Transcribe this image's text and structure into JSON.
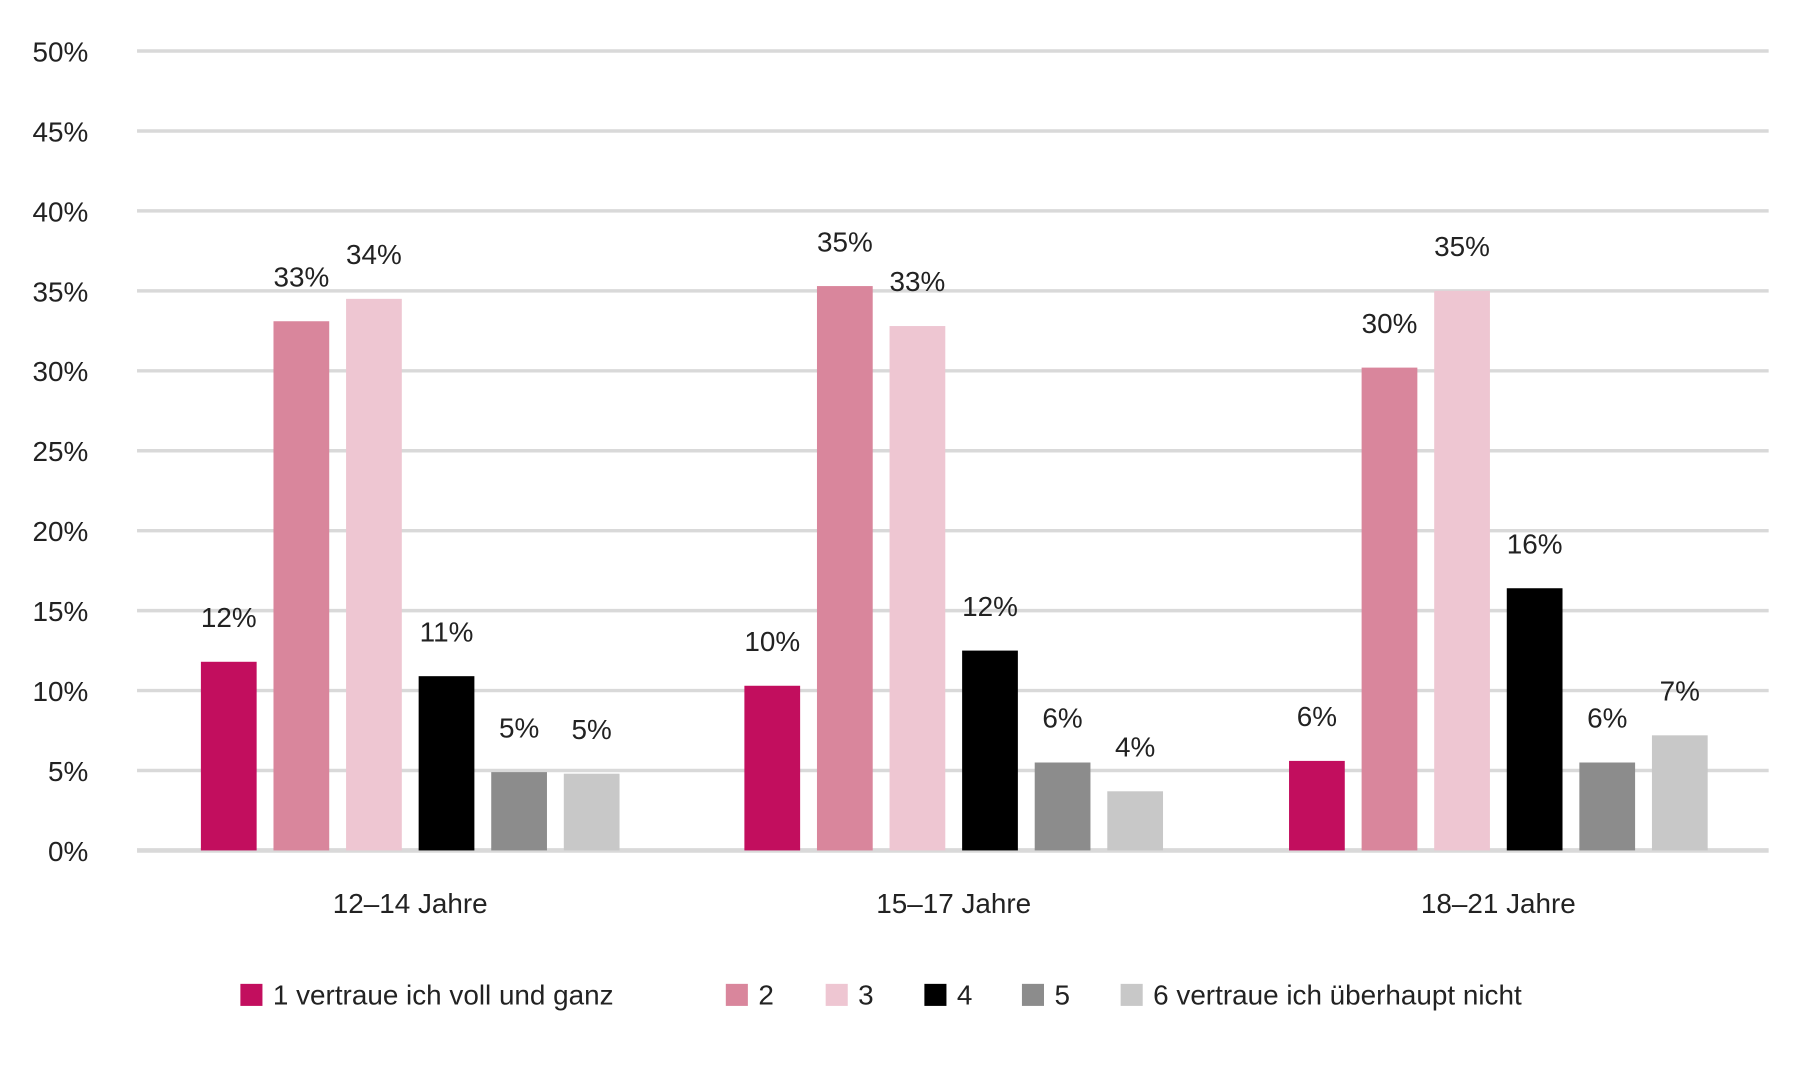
{
  "chart_data": {
    "type": "bar",
    "title": "",
    "xlabel": "",
    "ylabel": "",
    "ylim": [
      0,
      50
    ],
    "grid": true,
    "legend_position": "bottom",
    "yticks": [
      "0%",
      "5%",
      "10%",
      "15%",
      "20%",
      "25%",
      "30%",
      "35%",
      "40%",
      "45%",
      "50%"
    ],
    "categories": [
      "12–14 Jahre",
      "15–17 Jahre",
      "18–21 Jahre"
    ],
    "series": [
      {
        "name": "1 vertraue ich voll und ganz",
        "color": "#c20e5e",
        "values": [
          11.8,
          10.3,
          5.6
        ],
        "labels": [
          "12%",
          "10%",
          "6%"
        ]
      },
      {
        "name": "2",
        "color": "#d9869c",
        "values": [
          33.1,
          35.3,
          30.2
        ],
        "labels": [
          "33%",
          "35%",
          "30%"
        ]
      },
      {
        "name": "3",
        "color": "#eec6d2",
        "values": [
          34.5,
          32.8,
          35.0
        ],
        "labels": [
          "34%",
          "33%",
          "35%"
        ]
      },
      {
        "name": "4",
        "color": "#000000",
        "values": [
          10.9,
          12.5,
          16.4
        ],
        "labels": [
          "11%",
          "12%",
          "16%"
        ]
      },
      {
        "name": "5",
        "color": "#8c8c8c",
        "values": [
          4.9,
          5.5,
          5.5
        ],
        "labels": [
          "5%",
          "6%",
          "6%"
        ]
      },
      {
        "name": "6 vertraue ich überhaupt nicht",
        "color": "#c8c8c8",
        "values": [
          4.8,
          3.7,
          7.2
        ],
        "labels": [
          "5%",
          "4%",
          "7%"
        ]
      }
    ]
  }
}
